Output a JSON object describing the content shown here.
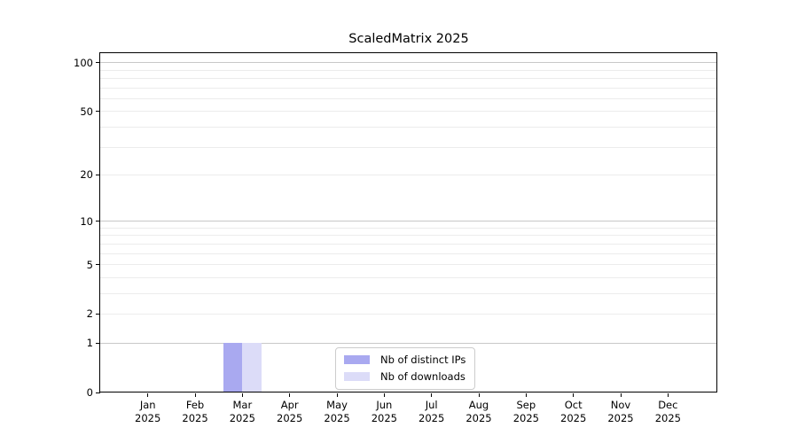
{
  "title": "ScaledMatrix 2025",
  "colors": {
    "distinct_ips": "#a9a9f0",
    "downloads": "#dcdcf8",
    "grid_major": "#c8c8c8",
    "grid_minor": "#ececec",
    "axis": "#000000",
    "legend_border": "#cccccc",
    "background": "#ffffff"
  },
  "legend": {
    "items": [
      {
        "label": "Nb of distinct IPs",
        "color_key": "distinct_ips"
      },
      {
        "label": "Nb of downloads",
        "color_key": "downloads"
      }
    ]
  },
  "y_axis": {
    "scale": "log1p",
    "tick_values": [
      0,
      1,
      2,
      5,
      10,
      20,
      50,
      100
    ],
    "grid_major_values": [
      1,
      10,
      100
    ],
    "grid_minor_values": [
      2,
      3,
      4,
      5,
      6,
      7,
      8,
      9,
      20,
      30,
      40,
      50,
      60,
      70,
      80,
      90
    ]
  },
  "x_axis": {
    "year": "2025",
    "months": [
      "Jan",
      "Feb",
      "Mar",
      "Apr",
      "May",
      "Jun",
      "Jul",
      "Aug",
      "Sep",
      "Oct",
      "Nov",
      "Dec"
    ]
  },
  "chart_data": {
    "type": "bar",
    "title": "ScaledMatrix 2025",
    "categories": [
      "Jan 2025",
      "Feb 2025",
      "Mar 2025",
      "Apr 2025",
      "May 2025",
      "Jun 2025",
      "Jul 2025",
      "Aug 2025",
      "Sep 2025",
      "Oct 2025",
      "Nov 2025",
      "Dec 2025"
    ],
    "series": [
      {
        "name": "Nb of distinct IPs",
        "color_key": "distinct_ips",
        "values": [
          0,
          0,
          1,
          0,
          0,
          0,
          0,
          0,
          0,
          0,
          0,
          0
        ]
      },
      {
        "name": "Nb of downloads",
        "color_key": "downloads",
        "values": [
          0,
          0,
          1,
          0,
          0,
          0,
          0,
          0,
          0,
          0,
          0,
          0
        ]
      }
    ],
    "xlabel": "",
    "ylabel": "",
    "yscale": "log1p",
    "ylim": [
      0,
      117
    ],
    "y_tick_labels": [
      "0",
      "1",
      "2",
      "5",
      "10",
      "20",
      "50",
      "100"
    ],
    "grid": true,
    "legend_position": "lower center"
  }
}
